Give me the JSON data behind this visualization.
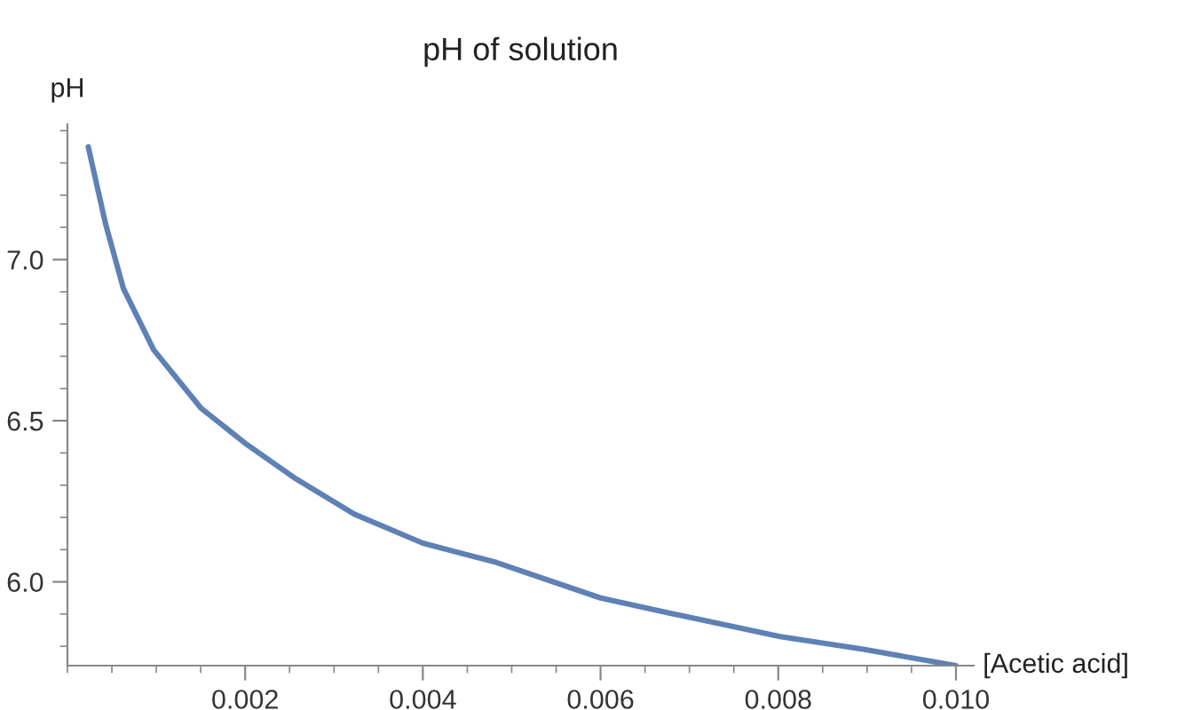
{
  "chart_data": {
    "type": "line",
    "title": "pH of solution",
    "xlabel": "[Acetic acid]",
    "ylabel": "pH",
    "series": [
      {
        "color": "#5e81b5",
        "x": [
          0.000234,
          0.00043,
          0.00063,
          0.00097,
          0.0015,
          0.002,
          0.00257,
          0.00323,
          0.004,
          0.00483,
          0.006,
          0.00683,
          0.00802,
          0.00897,
          0.01
        ],
        "values": [
          7.35,
          7.11,
          6.91,
          6.72,
          6.54,
          6.43,
          6.32,
          6.21,
          6.12,
          6.06,
          5.95,
          5.9,
          5.83,
          5.79,
          5.74
        ]
      }
    ],
    "xlim": [
      0,
      0.0102
    ],
    "ylim": [
      5.74,
      7.42
    ],
    "xticks": [
      0.002,
      0.004,
      0.006,
      0.008,
      {
        "value": 0.01,
        "label": "0.010"
      }
    ],
    "yticks": [
      {
        "value": 6,
        "label": "6.0"
      },
      {
        "value": 6.5,
        "label": "6.5"
      },
      {
        "value": 7,
        "label": "7.0"
      }
    ],
    "grid": false,
    "legend": false,
    "marker": "none",
    "line_style": "solid"
  }
}
